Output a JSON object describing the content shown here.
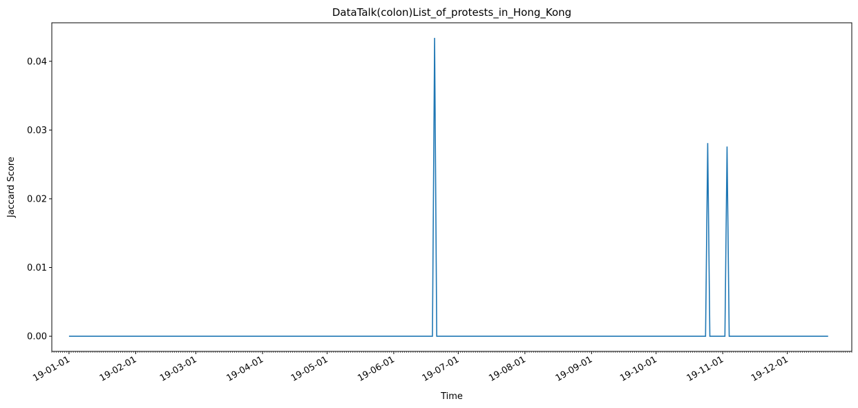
{
  "chart_data": {
    "type": "line",
    "title": "DataTalk(colon)List_of_protests_in_Hong_Kong",
    "xlabel": "Time",
    "ylabel": "Jaccard Score",
    "ylim": [
      -0.0022,
      0.0456
    ],
    "xlim": [
      "2018-12-24",
      "2019-12-31"
    ],
    "yticks": [
      0.0,
      0.01,
      0.02,
      0.03,
      0.04
    ],
    "ytick_labels": [
      "0.00",
      "0.01",
      "0.02",
      "0.03",
      "0.04"
    ],
    "xticks": [
      "2019-01-01",
      "2019-02-01",
      "2019-03-01",
      "2019-04-01",
      "2019-05-01",
      "2019-06-01",
      "2019-07-01",
      "2019-08-01",
      "2019-09-01",
      "2019-10-01",
      "2019-11-01",
      "2019-12-01"
    ],
    "xtick_labels": [
      "19-01-01",
      "19-02-01",
      "19-03-01",
      "19-04-01",
      "19-05-01",
      "19-06-01",
      "19-07-01",
      "19-08-01",
      "19-09-01",
      "19-10-01",
      "19-11-01",
      "19-12-01"
    ],
    "grid": false,
    "color": "#1f77b4",
    "series": [
      {
        "x": [
          "2019-01-01",
          "2019-06-19",
          "2019-06-20",
          "2019-06-21",
          "2019-10-24",
          "2019-10-25",
          "2019-10-26",
          "2019-11-02",
          "2019-11-03",
          "2019-11-04",
          "2019-12-20"
        ],
        "values": [
          0.0,
          0.0,
          0.0434,
          0.0,
          0.0,
          0.0281,
          0.0,
          0.0,
          0.0276,
          0.0,
          0.0
        ]
      }
    ]
  }
}
